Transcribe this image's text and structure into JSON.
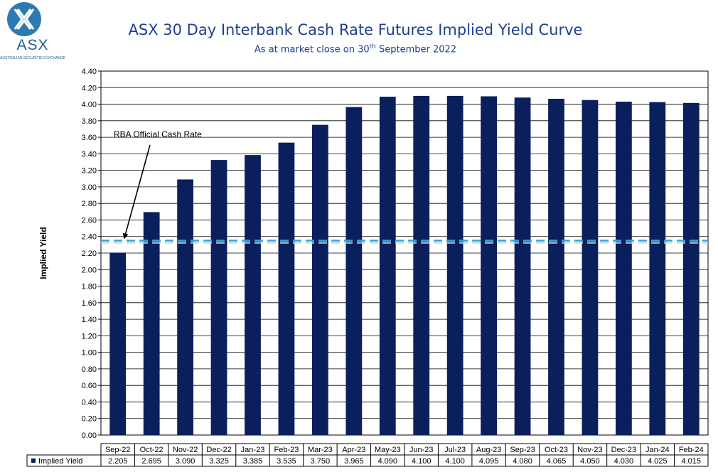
{
  "logo": {
    "text": "ASX",
    "subtext": "AUSTRALIAN SECURITIES EXCHANGE"
  },
  "title": "ASX 30 Day Interbank Cash Rate Futures Implied Yield Curve",
  "subtitle": {
    "prefix": "As at market close on 30",
    "sup": "th",
    "suffix": " September 2022"
  },
  "colors": {
    "bar": "#0b1f5c",
    "reference_line": "#29a8e0",
    "title": "#1f3f8f"
  },
  "chart_data": {
    "type": "bar",
    "ylabel": "Implied Yield",
    "ylim": [
      0,
      4.4
    ],
    "ytick_step": 0.2,
    "yticks": [
      "0.00",
      "0.20",
      "0.40",
      "0.60",
      "0.80",
      "1.00",
      "1.20",
      "1.40",
      "1.60",
      "1.80",
      "2.00",
      "2.20",
      "2.40",
      "2.60",
      "2.80",
      "3.00",
      "3.20",
      "3.40",
      "3.60",
      "3.80",
      "4.00",
      "4.20",
      "4.40"
    ],
    "categories": [
      "Sep-22",
      "Oct-22",
      "Nov-22",
      "Dec-22",
      "Jan-23",
      "Feb-23",
      "Mar-23",
      "Apr-23",
      "May-23",
      "Jun-23",
      "Jul-23",
      "Aug-23",
      "Sep-23",
      "Oct-23",
      "Nov-23",
      "Dec-23",
      "Jan-24",
      "Feb-24"
    ],
    "series": [
      {
        "name": "Implied Yield",
        "values": [
          2.205,
          2.695,
          3.09,
          3.325,
          3.385,
          3.535,
          3.75,
          3.965,
          4.09,
          4.1,
          4.1,
          4.095,
          4.08,
          4.065,
          4.05,
          4.03,
          4.025,
          4.015
        ],
        "table_values": [
          "2.205",
          "2.695",
          "3.090",
          "3.325",
          "3.385",
          "3.535",
          "3.750",
          "3.965",
          "4.090",
          "4.100",
          "4.100",
          "4.095",
          "4.080",
          "4.065",
          "4.050",
          "4.030",
          "4.025",
          "4.015"
        ]
      }
    ],
    "reference_line": {
      "label": "RBA Official Cash Rate",
      "value": 2.35,
      "style": "dashed"
    },
    "grid": true,
    "data_table": true
  }
}
